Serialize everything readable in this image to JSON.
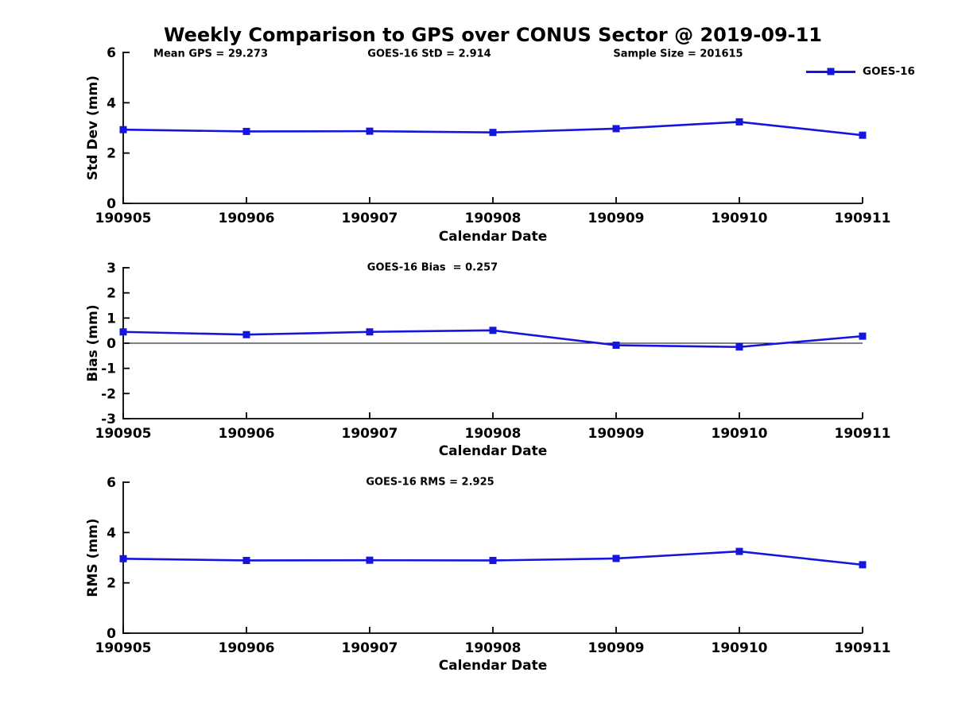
{
  "title": "Weekly Comparison to GPS over CONUS Sector @ 2019-09-11",
  "legend": {
    "label": "GOES-16"
  },
  "colors": {
    "series": "#1515dd",
    "axis": "#000000"
  },
  "chart_data": [
    {
      "type": "line",
      "key": "std-dev",
      "categories": [
        "190905",
        "190906",
        "190907",
        "190908",
        "190909",
        "190910",
        "190911"
      ],
      "series": [
        {
          "name": "GOES-16",
          "values": [
            2.93,
            2.86,
            2.87,
            2.82,
            2.97,
            3.24,
            2.71
          ]
        }
      ],
      "xlabel": "Calendar Date",
      "ylabel": "Std Dev (mm)",
      "ylim": [
        0,
        6
      ],
      "yticks": [
        0,
        2,
        4,
        6
      ],
      "zero_line": false,
      "marker": "square",
      "grid": false,
      "legend_position": "top-right",
      "stat_labels": [
        "Mean GPS = 29.273",
        "GOES-16 StD = 2.914",
        "Sample Size = 201615"
      ]
    },
    {
      "type": "line",
      "key": "bias",
      "categories": [
        "190905",
        "190906",
        "190907",
        "190908",
        "190909",
        "190910",
        "190911"
      ],
      "series": [
        {
          "name": "GOES-16",
          "values": [
            0.45,
            0.34,
            0.45,
            0.51,
            -0.08,
            -0.15,
            0.28
          ]
        }
      ],
      "xlabel": "Calendar Date",
      "ylabel": "Bias (mm)",
      "ylim": [
        -3,
        3
      ],
      "yticks": [
        3,
        2,
        1,
        0,
        -1,
        -2,
        -3
      ],
      "zero_line": true,
      "marker": "square",
      "grid": false,
      "stat_labels": [
        "GOES-16 Bias  = 0.257"
      ]
    },
    {
      "type": "line",
      "key": "rms",
      "categories": [
        "190905",
        "190906",
        "190907",
        "190908",
        "190909",
        "190910",
        "190911"
      ],
      "series": [
        {
          "name": "GOES-16",
          "values": [
            2.96,
            2.89,
            2.9,
            2.89,
            2.97,
            3.25,
            2.72
          ]
        }
      ],
      "xlabel": "Calendar Date",
      "ylabel": "RMS (mm)",
      "ylim": [
        0,
        6
      ],
      "yticks": [
        0,
        2,
        4,
        6
      ],
      "zero_line": false,
      "marker": "square",
      "grid": false,
      "stat_labels": [
        "GOES-16 RMS = 2.925"
      ]
    }
  ]
}
